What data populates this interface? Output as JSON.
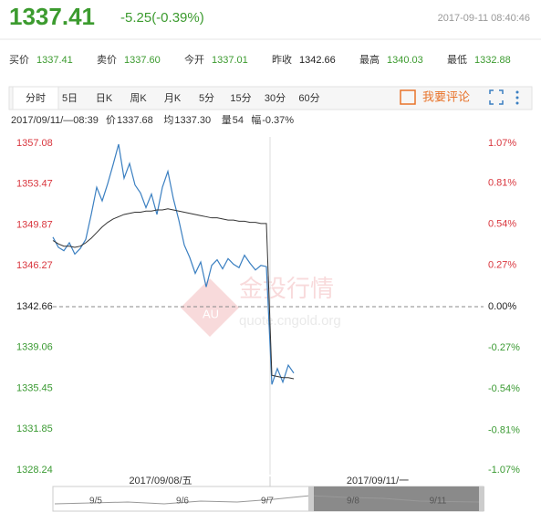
{
  "header": {
    "price": 1337.41,
    "change": "-5.25(-0.39%)",
    "time": "2017-09-11 08:40:46",
    "color": "#3c9b2f"
  },
  "quotes": [
    {
      "label": "买价",
      "value": 1337.41,
      "color": "#3c9b2f"
    },
    {
      "label": "卖价",
      "value": "1337.60",
      "color": "#3c9b2f"
    },
    {
      "label": "今开",
      "value": 1337.01,
      "color": "#3c9b2f"
    },
    {
      "label": "昨收",
      "value": 1342.66,
      "color": "#222222"
    },
    {
      "label": "最高",
      "value": 1340.03,
      "color": "#3c9b2f"
    },
    {
      "label": "最低",
      "value": 1332.88,
      "color": "#3c9b2f"
    }
  ],
  "tabs": [
    "分时",
    "5日",
    "日K",
    "周K",
    "月K",
    "5分",
    "15分",
    "30分",
    "60分"
  ],
  "comment": "我要评论",
  "info": [
    "2017/09/11/—08:39",
    "价",
    "1337.68",
    "均",
    "1337.30",
    "量",
    "54",
    "幅",
    "-0.37%"
  ],
  "watermark": {
    "logo": "AU",
    "name": "金投行情",
    "url": "quote.cngold.org"
  },
  "navigator": {
    "dates": [
      "2017/09/08/五",
      "2017/09/11/一"
    ],
    "days": [
      "9/5",
      "9/6",
      "9/7",
      "9/8",
      "9/11"
    ]
  },
  "chart_data": {
    "type": "line",
    "ylim": [
      1328.24,
      1357.08
    ],
    "yticks": [
      1357.08,
      1353.47,
      1349.87,
      1346.27,
      1342.66,
      1339.06,
      1335.45,
      1331.85,
      1328.24
    ],
    "y2lim": [
      -1.07,
      1.07
    ],
    "y2ticks": [
      {
        "value": 1.07,
        "label": "1.07%"
      },
      {
        "value": 0.81,
        "label": "0.81%"
      },
      {
        "value": 0.54,
        "label": "0.54%"
      },
      {
        "value": 0.27,
        "label": "0.27%"
      },
      {
        "value": 0,
        "label": "0.00%"
      },
      {
        "value": -0.27,
        "label": "-0.27%"
      },
      {
        "value": -0.54,
        "label": "-0.54%"
      },
      {
        "value": -0.81,
        "label": "-0.81%"
      },
      {
        "value": -1.07,
        "label": "-1.07%"
      }
    ],
    "up_color": "#d9363e",
    "down_color": "#3a9a32",
    "flat_color": "#222222",
    "series": [
      {
        "color": "#3a7fc1",
        "values": [
          1348.8,
          1347.9,
          1347.6,
          1348.3,
          1347.3,
          1347.8,
          1348.6,
          1350.8,
          1353.2,
          1352.0,
          1353.5,
          1355.2,
          1357.0,
          1354.0,
          1355.3,
          1353.4,
          1352.7,
          1351.4,
          1352.6,
          1350.8,
          1353.2,
          1354.6,
          1352.2,
          1350.3,
          1348.1,
          1347.0,
          1345.6,
          1346.6,
          1344.4,
          1346.3,
          1346.8,
          1346.0,
          1346.9,
          1346.4,
          1346.1,
          1347.2,
          1346.5,
          1345.9,
          1346.3,
          1346.2,
          1335.8,
          1337.2,
          1336.0,
          1337.5,
          1336.8
        ]
      },
      {
        "color": "#333333",
        "values": [
          1348.5,
          1348.2,
          1348.0,
          1348.0,
          1347.9,
          1348.0,
          1348.3,
          1348.7,
          1349.2,
          1349.7,
          1350.1,
          1350.4,
          1350.6,
          1350.8,
          1350.9,
          1351.0,
          1351.0,
          1351.1,
          1351.1,
          1351.2,
          1351.2,
          1351.3,
          1351.2,
          1351.1,
          1351.0,
          1350.9,
          1350.8,
          1350.7,
          1350.6,
          1350.5,
          1350.5,
          1350.4,
          1350.3,
          1350.3,
          1350.2,
          1350.2,
          1350.1,
          1350.1,
          1350.0,
          1350.0,
          1336.6,
          1336.5,
          1336.4,
          1336.4,
          1336.3
        ]
      }
    ]
  }
}
